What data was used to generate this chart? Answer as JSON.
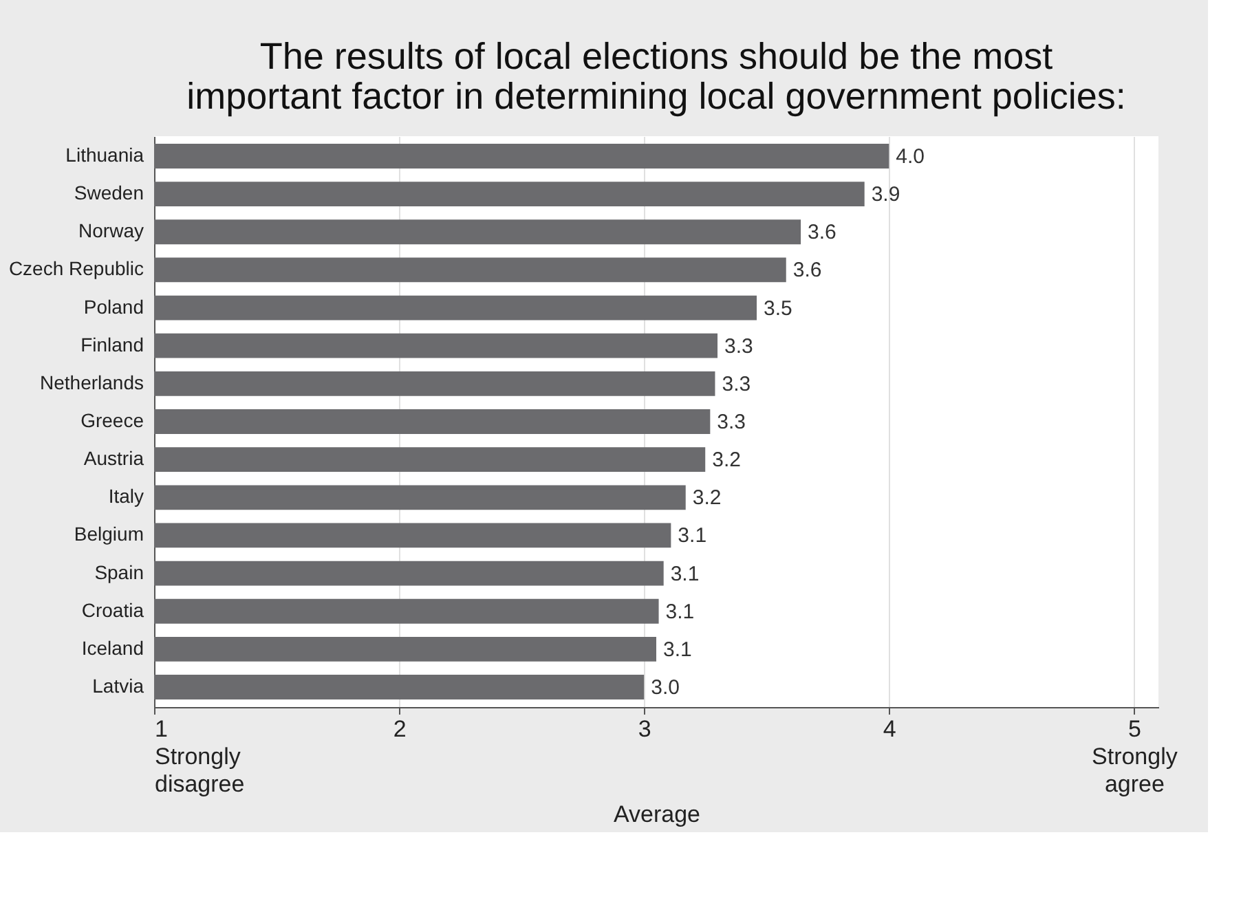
{
  "chart_data": {
    "type": "bar",
    "orientation": "horizontal",
    "title": [
      "The results of local elections should be the most",
      "important factor in determining local government policies:"
    ],
    "xlabel": "Average",
    "categories": [
      "Lithuania",
      "Sweden",
      "Norway",
      "Czech Republic",
      "Poland",
      "Finland",
      "Netherlands",
      "Greece",
      "Austria",
      "Italy",
      "Belgium",
      "Spain",
      "Croatia",
      "Iceland",
      "Latvia"
    ],
    "values": [
      4.0,
      3.9,
      3.64,
      3.58,
      3.46,
      3.3,
      3.29,
      3.27,
      3.25,
      3.17,
      3.11,
      3.08,
      3.06,
      3.05,
      3.0
    ],
    "value_labels": [
      "4.0",
      "3.9",
      "3.6",
      "3.6",
      "3.5",
      "3.3",
      "3.3",
      "3.3",
      "3.2",
      "3.2",
      "3.1",
      "3.1",
      "3.1",
      "3.1",
      "3.0"
    ],
    "color": "#6b6b6e",
    "xlim": [
      1,
      5.1
    ],
    "xticks": [
      {
        "value": 1,
        "label": "1\nStrongly\ndisagree"
      },
      2,
      3,
      4,
      {
        "value": 5,
        "label": "5\nStrongly\nagree"
      }
    ],
    "grid": "x"
  }
}
